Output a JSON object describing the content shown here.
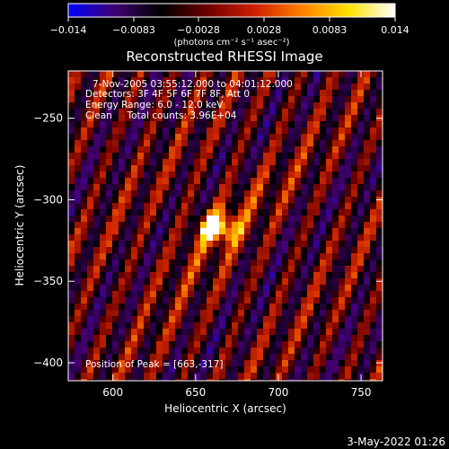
{
  "chart_data": {
    "type": "heatmap",
    "title": "Reconstructed RHESSI Image",
    "xlabel": "Heliocentric X (arcsec)",
    "ylabel": "Heliocentric Y (arcsec)",
    "xlim": [
      573,
      763
    ],
    "ylim": [
      -411,
      -221
    ],
    "x_ticks": [
      600,
      650,
      700,
      750
    ],
    "y_ticks": [
      -250,
      -300,
      -350,
      -400
    ],
    "x_tick_labels": [
      "600",
      "650",
      "700",
      "750"
    ],
    "y_tick_labels": [
      "−250",
      "−300",
      "−350",
      "−400"
    ],
    "colorbar": {
      "range": [
        -0.014,
        0.014
      ],
      "tick_labels": [
        "−0.014",
        "−0.0083",
        "−0.0028",
        "0.0028",
        "0.0083",
        "0.014"
      ],
      "unit_label": "(photons cm⁻² s⁻¹ asec⁻²)",
      "colormap": [
        "#0000ff",
        "#400070",
        "#000000",
        "#700000",
        "#d02000",
        "#ff8000",
        "#ffe000",
        "#ffffff"
      ]
    },
    "peak_position": [
      663,
      -317
    ],
    "annotations": [
      "7-Nov-2005 03:55:12.000 to 04:01:12.000",
      "Detectors: 3F 4F 5F 6F 7F 8F, Att 0",
      "Energy Range: 6.0 - 12.0 keV",
      "Clean     Total counts: 3.96E+04",
      "Position of Peak = [663,-317]"
    ]
  },
  "footer": {
    "timestamp": "3-May-2022 01:26"
  }
}
